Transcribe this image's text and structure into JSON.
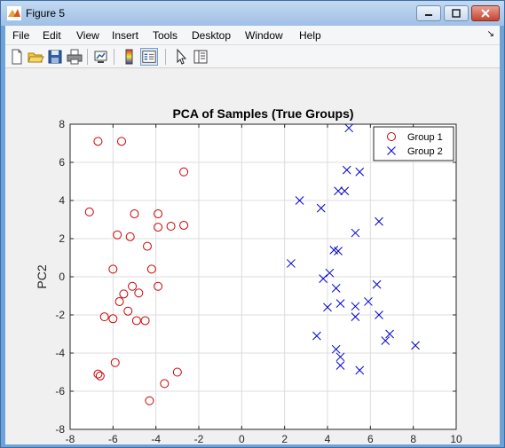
{
  "window": {
    "title": "Figure 5",
    "controls": [
      "minimize",
      "maximize",
      "close"
    ]
  },
  "menubar": {
    "items": [
      "File",
      "Edit",
      "View",
      "Insert",
      "Tools",
      "Desktop",
      "Window",
      "Help"
    ],
    "overflow_arrow": "↘"
  },
  "toolbar": {
    "buttons": [
      "new-figure-icon",
      "open-file-icon",
      "save-icon",
      "print-icon",
      "link-plot-icon",
      "colorbar-icon",
      "legend-icon",
      "pointer-icon",
      "property-editor-icon"
    ]
  },
  "colors": {
    "group1": "#cc0000",
    "group2": "#0000cc",
    "grid": "#dcdcdc"
  },
  "chart_data": {
    "type": "scatter",
    "title": "PCA of Samples (True Groups)",
    "xlabel": "PC1",
    "ylabel": "PC2",
    "xlim": [
      -8,
      10
    ],
    "ylim": [
      -8,
      8
    ],
    "xticks": [
      -8,
      -6,
      -4,
      -2,
      0,
      2,
      4,
      6,
      8,
      10
    ],
    "yticks": [
      -8,
      -6,
      -4,
      -2,
      0,
      2,
      4,
      6,
      8
    ],
    "grid": true,
    "legend_position": "top-right",
    "series": [
      {
        "name": "Group 1",
        "marker": "circle",
        "color": "#cc0000",
        "points": [
          [
            -6.7,
            7.1
          ],
          [
            -5.6,
            7.1
          ],
          [
            -2.7,
            5.5
          ],
          [
            -7.1,
            3.4
          ],
          [
            -5.0,
            3.3
          ],
          [
            -3.9,
            3.3
          ],
          [
            -3.9,
            2.6
          ],
          [
            -3.3,
            2.65
          ],
          [
            -2.7,
            2.7
          ],
          [
            -5.8,
            2.2
          ],
          [
            -5.2,
            2.1
          ],
          [
            -4.4,
            1.6
          ],
          [
            -6.0,
            0.4
          ],
          [
            -4.2,
            0.4
          ],
          [
            -5.1,
            -0.5
          ],
          [
            -3.9,
            -0.5
          ],
          [
            -5.5,
            -0.9
          ],
          [
            -4.8,
            -0.85
          ],
          [
            -5.7,
            -1.3
          ],
          [
            -6.4,
            -2.1
          ],
          [
            -6.0,
            -2.2
          ],
          [
            -5.3,
            -1.8
          ],
          [
            -4.9,
            -2.3
          ],
          [
            -4.5,
            -2.3
          ],
          [
            -6.7,
            -5.1
          ],
          [
            -6.6,
            -5.2
          ],
          [
            -5.9,
            -4.5
          ],
          [
            -3.0,
            -5.0
          ],
          [
            -3.6,
            -5.6
          ],
          [
            -4.3,
            -6.5
          ]
        ]
      },
      {
        "name": "Group 2",
        "marker": "x",
        "color": "#0000cc",
        "points": [
          [
            5.0,
            7.8
          ],
          [
            4.9,
            5.6
          ],
          [
            5.5,
            5.5
          ],
          [
            4.5,
            4.5
          ],
          [
            4.8,
            4.5
          ],
          [
            2.7,
            4.0
          ],
          [
            3.7,
            3.6
          ],
          [
            6.4,
            2.9
          ],
          [
            5.3,
            2.3
          ],
          [
            4.3,
            1.4
          ],
          [
            4.5,
            1.35
          ],
          [
            2.3,
            0.7
          ],
          [
            4.1,
            0.2
          ],
          [
            3.8,
            -0.1
          ],
          [
            4.4,
            -0.6
          ],
          [
            6.3,
            -0.4
          ],
          [
            4.0,
            -1.6
          ],
          [
            4.6,
            -1.4
          ],
          [
            5.3,
            -1.55
          ],
          [
            5.9,
            -1.3
          ],
          [
            5.3,
            -2.1
          ],
          [
            6.4,
            -2.0
          ],
          [
            3.5,
            -3.1
          ],
          [
            4.4,
            -3.8
          ],
          [
            4.6,
            -4.2
          ],
          [
            4.6,
            -4.65
          ],
          [
            5.5,
            -4.9
          ],
          [
            6.9,
            -3.0
          ],
          [
            6.7,
            -3.35
          ],
          [
            8.1,
            -3.6
          ]
        ]
      }
    ]
  }
}
